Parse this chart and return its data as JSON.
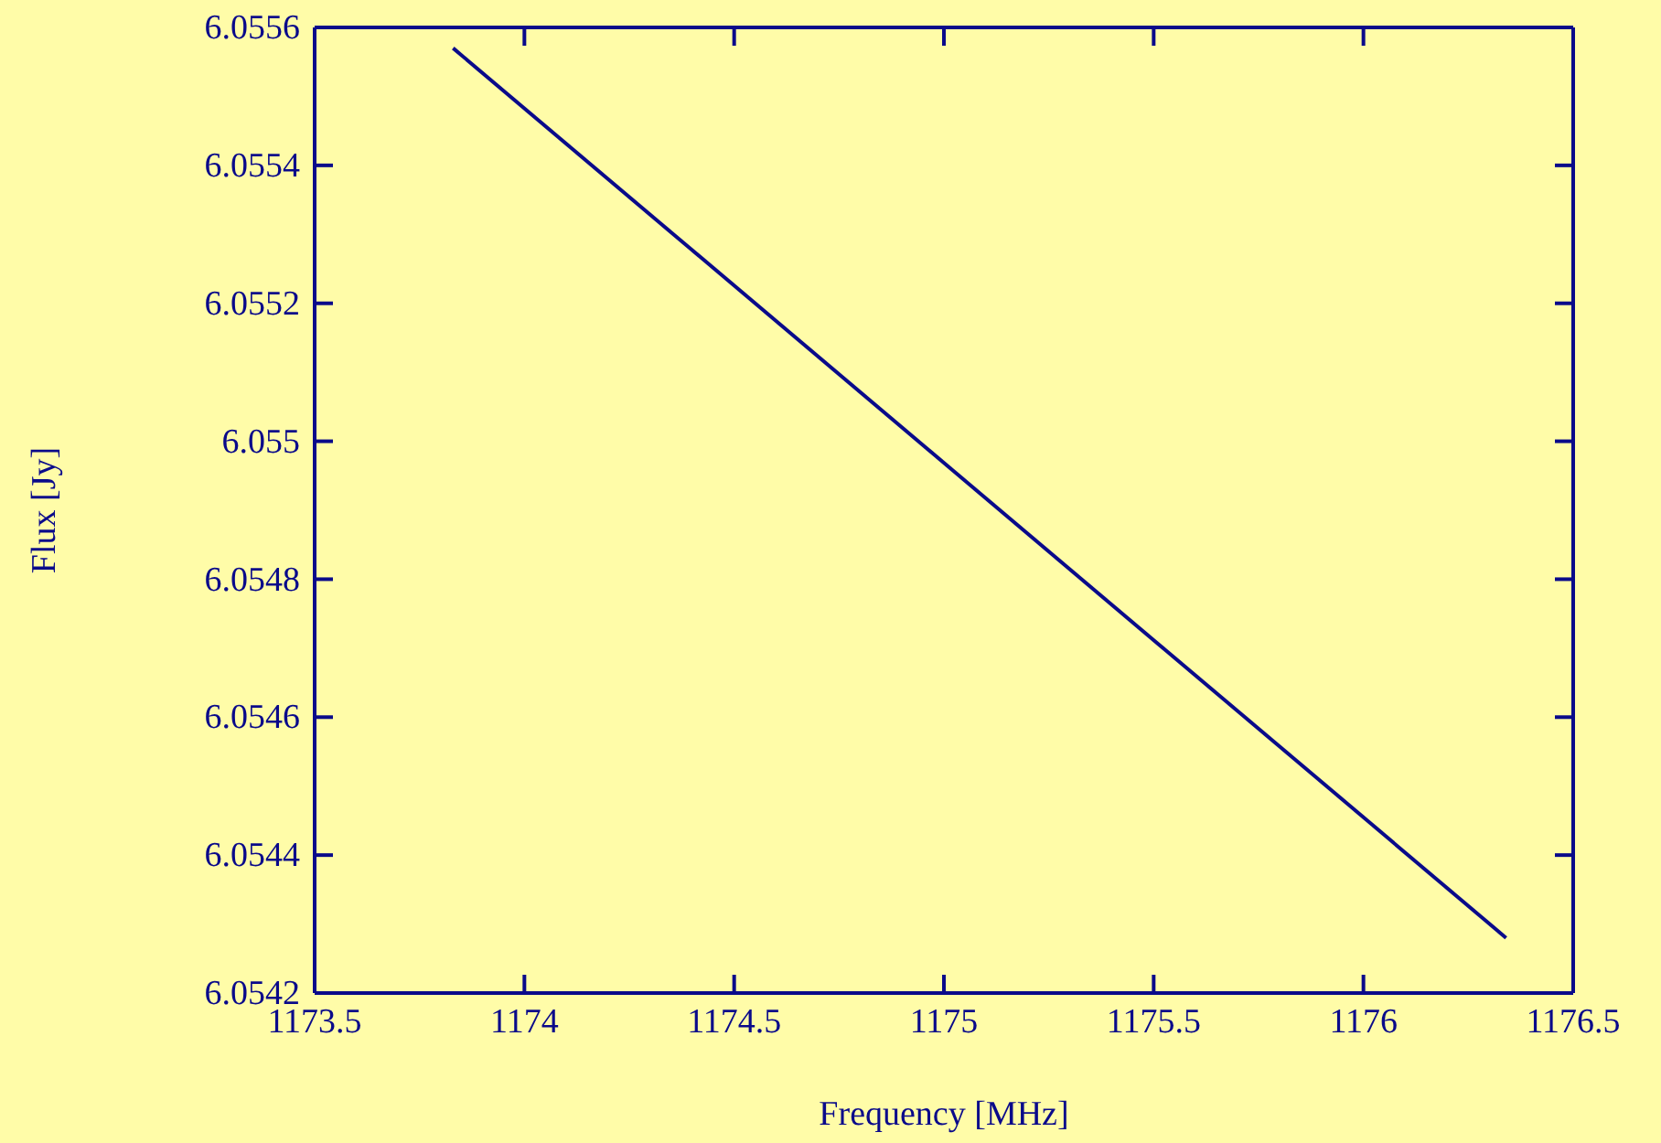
{
  "chart_data": {
    "type": "line",
    "xlabel": "Frequency [MHz]",
    "ylabel": "Flux [Jy]",
    "x": [
      1173.83,
      1176.34
    ],
    "series": [
      {
        "color": "#0a0a8a",
        "values": [
          6.05557,
          6.05428
        ]
      }
    ],
    "xlim": [
      1173.5,
      1176.5
    ],
    "xticks": [
      1173.5,
      1174,
      1174.5,
      1175,
      1175.5,
      1176,
      1176.5
    ],
    "ylim": [
      6.0542,
      6.0556
    ],
    "yticks": [
      6.0542,
      6.0544,
      6.0546,
      6.0548,
      6.055,
      6.0552,
      6.0554,
      6.0556
    ],
    "grid": false,
    "marker": "none",
    "line_style": "solid"
  }
}
